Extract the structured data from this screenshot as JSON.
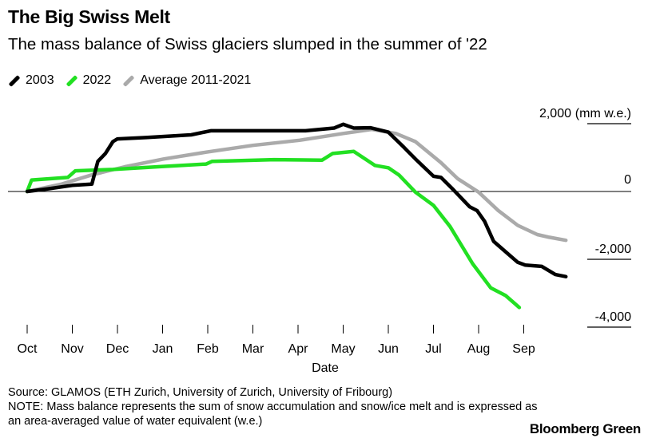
{
  "title": "The Big Swiss Melt",
  "subtitle": "The mass balance of Swiss glaciers slumped in the summer of '22",
  "source": "Source: GLAMOS (ETH Zurich, University of Zurich, University of Fribourg)",
  "note_line1": "NOTE: Mass balance represents the sum of snow accumulation and snow/ice melt and is expressed as",
  "note_line2": "an area-averaged value of water equivalent (w.e.)",
  "brand": "Bloomberg Green",
  "chart_data": {
    "type": "line",
    "xlabel": "Date",
    "ylabel": "",
    "y_unit": "(mm w.e.)",
    "ylim": [
      -4000,
      2000
    ],
    "yticks": [
      2000,
      0,
      -2000,
      -4000
    ],
    "ytick_labels": [
      "2,000",
      "0",
      "-2,000",
      "-4,000"
    ],
    "xticks": [
      "Oct",
      "Nov",
      "Dec",
      "Jan",
      "Feb",
      "Mar",
      "Apr",
      "May",
      "Jun",
      "Jul",
      "Aug",
      "Sep"
    ],
    "legend_placement": "top-left",
    "grid": false,
    "series": [
      {
        "name": "2003",
        "color": "#000000",
        "points": [
          [
            "Oct 1",
            0
          ],
          [
            "Oct 15",
            80
          ],
          [
            "Nov 1",
            180
          ],
          [
            "Nov 14",
            220
          ],
          [
            "Nov 18",
            890
          ],
          [
            "Nov 23",
            1120
          ],
          [
            "Nov 28",
            1470
          ],
          [
            "Dec 1",
            1550
          ],
          [
            "Dec 20",
            1590
          ],
          [
            "Jan 20",
            1670
          ],
          [
            "Feb 3",
            1790
          ],
          [
            "Apr 6",
            1790
          ],
          [
            "Apr 25",
            1870
          ],
          [
            "May 1",
            1980
          ],
          [
            "May 8",
            1870
          ],
          [
            "May 19",
            1880
          ],
          [
            "Jun 1",
            1750
          ],
          [
            "Jun 11",
            1320
          ],
          [
            "Jun 19",
            960
          ],
          [
            "Jul 1",
            450
          ],
          [
            "Jul 6",
            415
          ],
          [
            "Jul 14",
            60
          ],
          [
            "Jul 25",
            -450
          ],
          [
            "Jul 30",
            -565
          ],
          [
            "Aug 5",
            -880
          ],
          [
            "Aug 11",
            -1470
          ],
          [
            "Aug 27",
            -2090
          ],
          [
            "Sep 2",
            -2170
          ],
          [
            "Sep 13",
            -2210
          ],
          [
            "Sep 22",
            -2450
          ],
          [
            "Sep 29",
            -2510
          ]
        ]
      },
      {
        "name": "2022",
        "color": "#22e022",
        "points": [
          [
            "Oct 1",
            0
          ],
          [
            "Oct 4",
            340
          ],
          [
            "Oct 28",
            415
          ],
          [
            "Nov 3",
            610
          ],
          [
            "Nov 28",
            650
          ],
          [
            "Dec 28",
            730
          ],
          [
            "Jan 30",
            810
          ],
          [
            "Feb 4",
            890
          ],
          [
            "Mar 15",
            940
          ],
          [
            "Apr 17",
            925
          ],
          [
            "Apr 24",
            1120
          ],
          [
            "May 8",
            1180
          ],
          [
            "May 22",
            770
          ],
          [
            "Jun 1",
            700
          ],
          [
            "Jun 8",
            490
          ],
          [
            "Jun 19",
            -20
          ],
          [
            "Jul 1",
            -410
          ],
          [
            "Jul 12",
            -1030
          ],
          [
            "Jul 27",
            -2130
          ],
          [
            "Aug 9",
            -2840
          ],
          [
            "Aug 19",
            -3070
          ],
          [
            "Aug 28",
            -3420
          ]
        ]
      },
      {
        "name": "Average 2011-2021",
        "color": "#aaaaaa",
        "points": [
          [
            "Oct 1",
            0
          ],
          [
            "Oct 24",
            220
          ],
          [
            "Nov 14",
            490
          ],
          [
            "Dec 6",
            730
          ],
          [
            "Jan 2",
            960
          ],
          [
            "Jan 30",
            1160
          ],
          [
            "Mar 1",
            1360
          ],
          [
            "Apr 2",
            1510
          ],
          [
            "May 1",
            1710
          ],
          [
            "May 20",
            1830
          ],
          [
            "Jun 6",
            1710
          ],
          [
            "Jun 19",
            1470
          ],
          [
            "Jul 6",
            850
          ],
          [
            "Jul 17",
            380
          ],
          [
            "Aug 1",
            -20
          ],
          [
            "Aug 14",
            -560
          ],
          [
            "Aug 27",
            -1000
          ],
          [
            "Sep 10",
            -1270
          ],
          [
            "Sep 18",
            -1350
          ],
          [
            "Sep 29",
            -1440
          ]
        ]
      }
    ]
  }
}
